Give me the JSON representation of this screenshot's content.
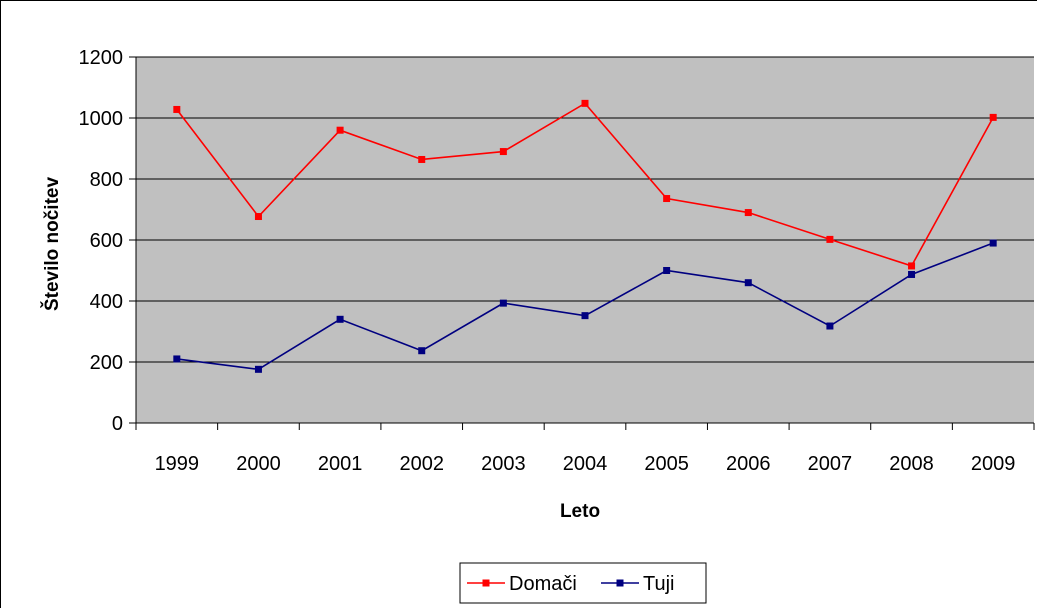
{
  "chart_data": {
    "type": "line",
    "categories": [
      "1999",
      "2000",
      "2001",
      "2002",
      "2003",
      "2004",
      "2005",
      "2006",
      "2007",
      "2008",
      "2009"
    ],
    "series": [
      {
        "name": "Domači",
        "color": "#ff0000",
        "values": [
          1028,
          677,
          960,
          864,
          890,
          1048,
          736,
          690,
          602,
          515,
          1002
        ]
      },
      {
        "name": "Tuji",
        "color": "#000080",
        "values": [
          210,
          176,
          340,
          237,
          393,
          352,
          500,
          460,
          318,
          487,
          590
        ]
      }
    ],
    "xlabel": "Leto",
    "ylabel": "Število nočitev",
    "ylim": [
      0,
      1200
    ],
    "yticks": [
      0,
      200,
      400,
      600,
      800,
      1000,
      1200
    ],
    "grid": true,
    "plot_background": "#c0c0c0",
    "legend_position": "bottom"
  }
}
